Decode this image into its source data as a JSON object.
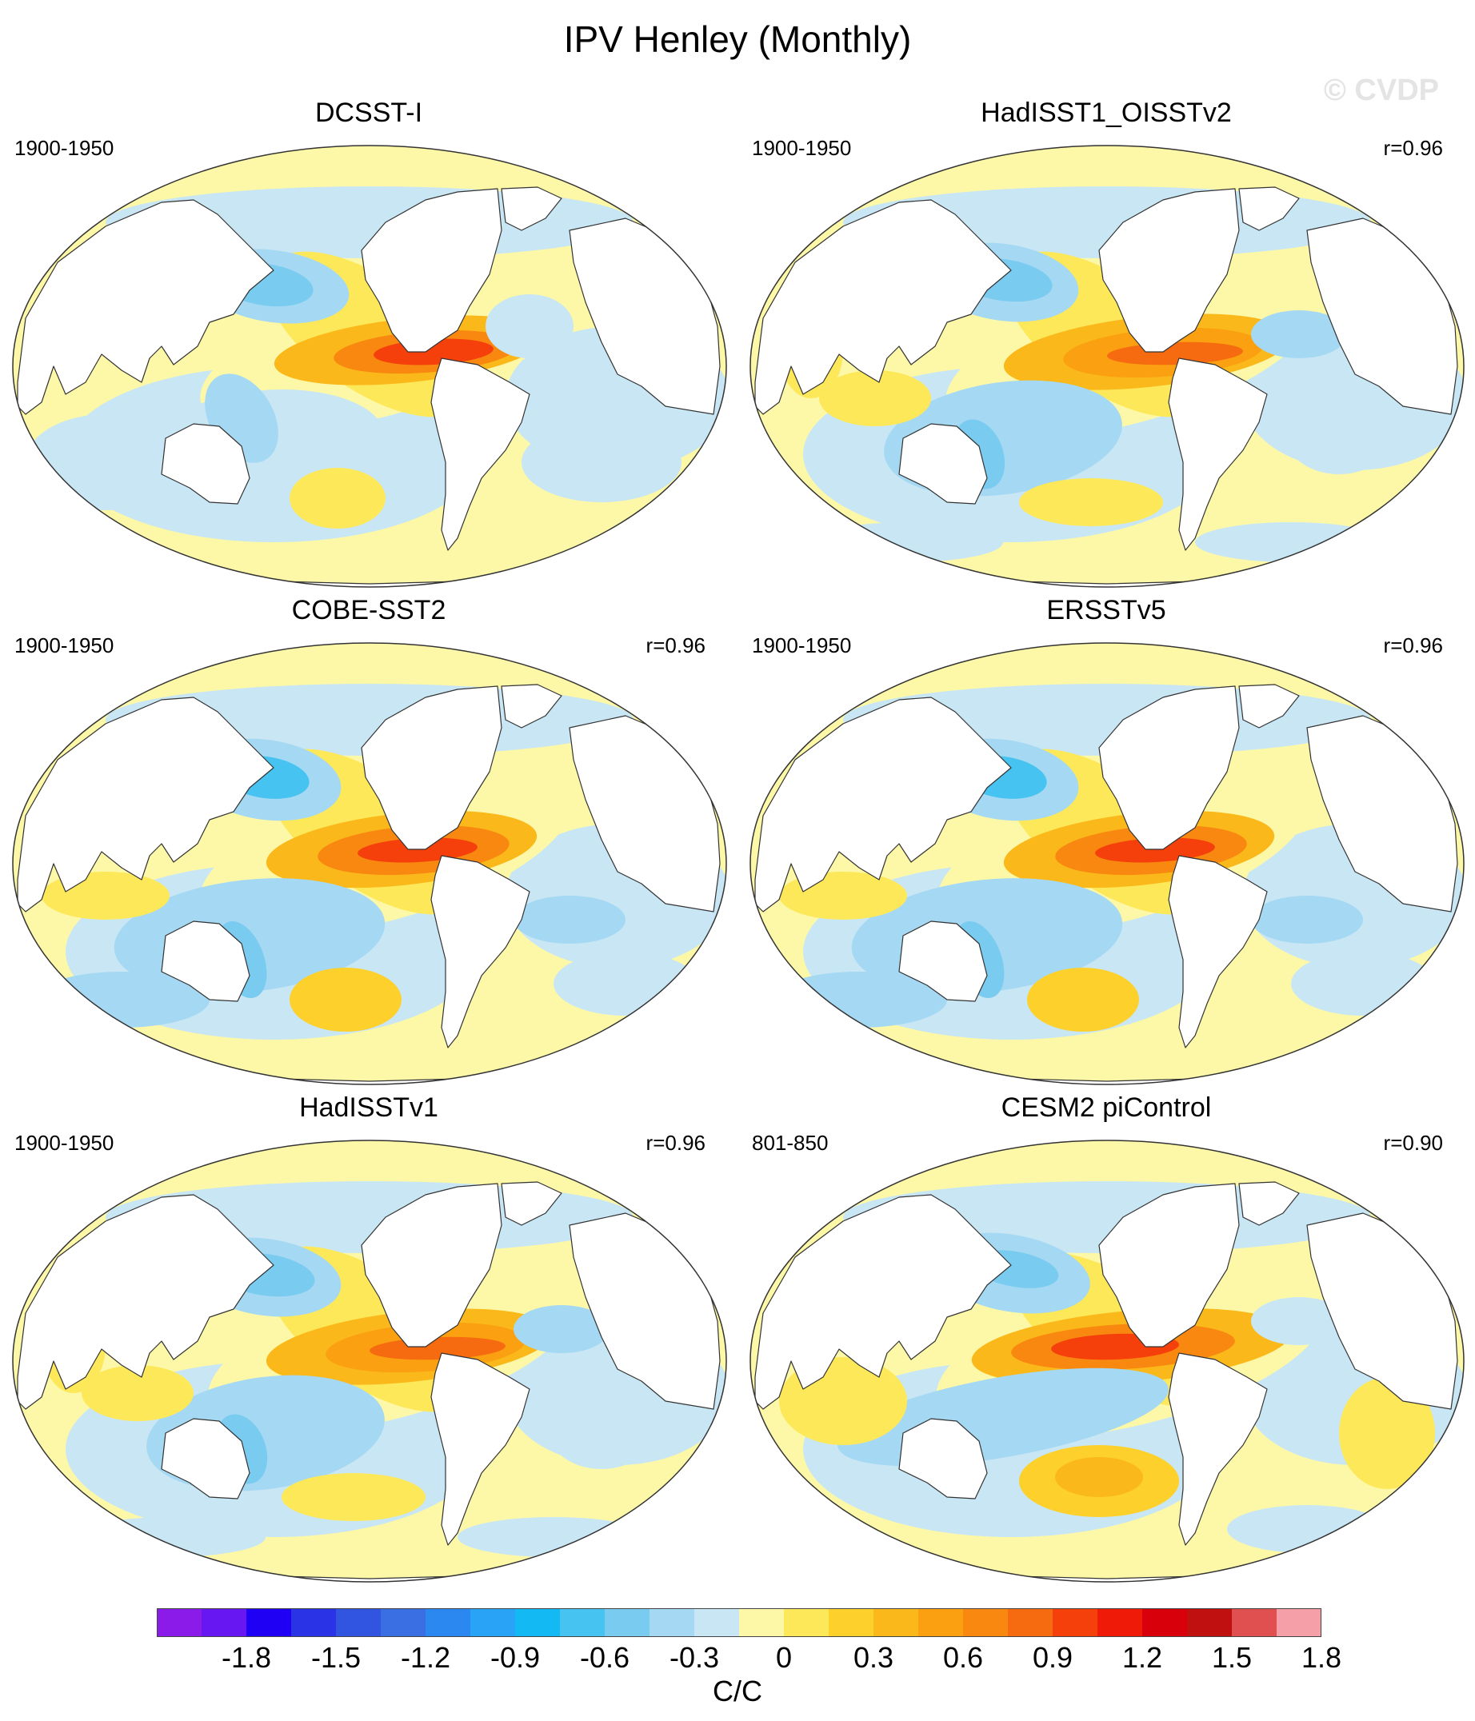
{
  "title": "IPV Henley (Monthly)",
  "watermark": "© CVDP",
  "panels": [
    {
      "title": "DCSST-I",
      "period": "1900-1950",
      "corr": "",
      "pattern": "smooth"
    },
    {
      "title": "HadISST1_OISSTv2",
      "period": "1900-1950",
      "corr": "r=0.96",
      "pattern": "noisy"
    },
    {
      "title": "COBE-SST2",
      "period": "1900-1950",
      "corr": "r=0.96",
      "pattern": "medium"
    },
    {
      "title": "ERSSTv5",
      "period": "1900-1950",
      "corr": "r=0.96",
      "pattern": "medium"
    },
    {
      "title": "HadISSTv1",
      "period": "1900-1950",
      "corr": "r=0.96",
      "pattern": "noisy"
    },
    {
      "title": "CESM2 piControl",
      "period": "801-850",
      "corr": "r=0.90",
      "pattern": "model"
    }
  ],
  "colorbar": {
    "units": "C/C",
    "labels": [
      "-1.8",
      "-1.5",
      "-1.2",
      "-0.9",
      "-0.6",
      "-0.3",
      "0",
      "0.3",
      "0.6",
      "0.9",
      "1.2",
      "1.5",
      "1.8"
    ],
    "colors": [
      "#8b1be8",
      "#6717f2",
      "#1f00f5",
      "#2b33e6",
      "#3155e0",
      "#3a6fe3",
      "#2a88f0",
      "#28a3f5",
      "#12b9f2",
      "#46c3f0",
      "#7acbf0",
      "#a5d8f2",
      "#c8e6f4",
      "#fdf8a8",
      "#fde85a",
      "#fdd02c",
      "#fbb81a",
      "#faa011",
      "#f88810",
      "#f66a10",
      "#f5400c",
      "#f01a08",
      "#d8000a",
      "#c01010",
      "#e05050",
      "#f5a0a8"
    ]
  }
}
